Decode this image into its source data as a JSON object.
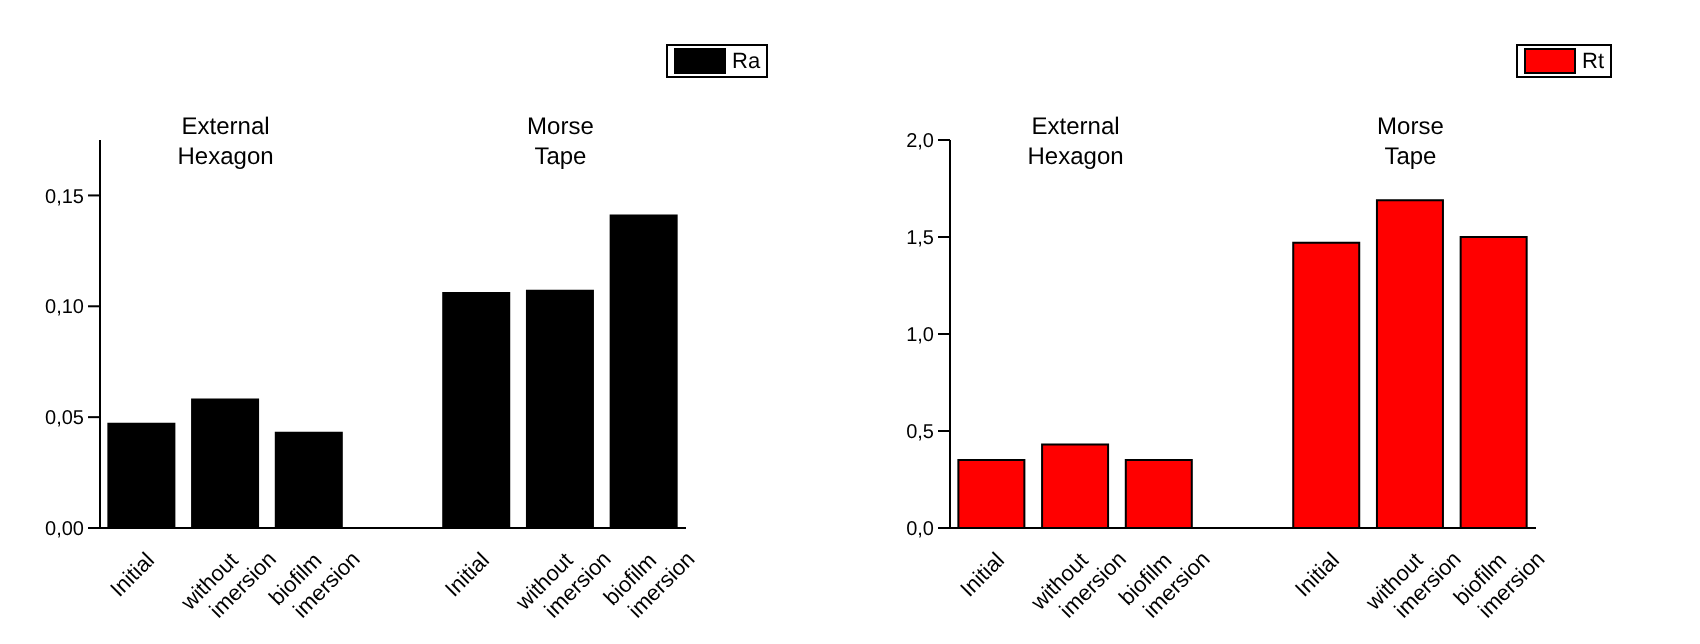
{
  "chart_data": [
    {
      "type": "bar",
      "categories": [
        "Initial",
        "without imersion",
        "biofilm imersion",
        null,
        "Initial",
        "without imersion",
        "biofilm imersion"
      ],
      "series": [
        {
          "name": "Ra",
          "color": "#000000",
          "values": [
            0.047,
            0.058,
            0.043,
            null,
            0.106,
            0.107,
            0.141
          ]
        }
      ],
      "ylim": [
        0,
        0.175
      ],
      "yticks": [
        {
          "value": 0,
          "label": "0,00"
        },
        {
          "value": 0.05,
          "label": "0,05"
        },
        {
          "value": 0.1,
          "label": "0,10"
        },
        {
          "value": 0.15,
          "label": "0,15"
        }
      ],
      "annotations": [
        "External Hexagon",
        "Morse Tape"
      ],
      "legend": "top right",
      "grid": false
    },
    {
      "type": "bar",
      "categories": [
        "Initial",
        "without imersion",
        "biofilm imersion",
        null,
        "Initial",
        "without imersion",
        "biofilm imersion"
      ],
      "series": [
        {
          "name": "Rt",
          "color": "#ff0000",
          "values": [
            0.35,
            0.43,
            0.35,
            null,
            1.47,
            1.69,
            1.5
          ]
        }
      ],
      "ylim": [
        0,
        2
      ],
      "yticks": [
        {
          "value": 0,
          "label": "0,0"
        },
        {
          "value": 0.5,
          "label": "0,5"
        },
        {
          "value": 1,
          "label": "1,0"
        },
        {
          "value": 1.5,
          "label": "1,5"
        },
        {
          "value": 2,
          "label": "2,0"
        }
      ],
      "annotations": [
        "External Hexagon",
        "Morse Tape"
      ],
      "legend": "top right",
      "grid": false
    }
  ]
}
